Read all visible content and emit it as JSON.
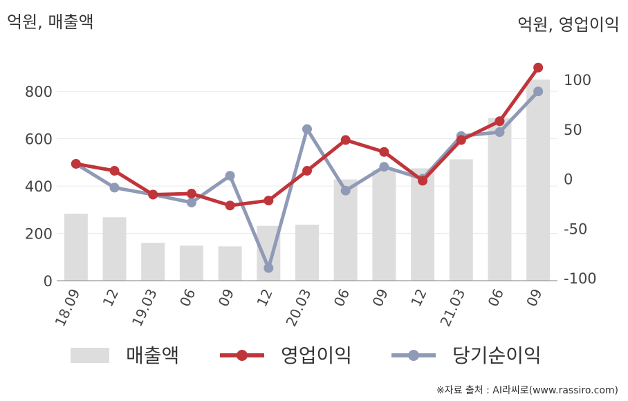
{
  "chart_data": {
    "type": "bar+line",
    "left_axis_label": "억원, 매출액",
    "right_axis_label": "억원, 영업이익",
    "categories": [
      "18.09",
      "12",
      "19.03",
      "06",
      "09",
      "12",
      "20.03",
      "06",
      "09",
      "12",
      "21.03",
      "06",
      "09"
    ],
    "left_ylim": [
      0,
      900
    ],
    "left_ticks": [
      0,
      200,
      400,
      600,
      800
    ],
    "right_ylim": [
      -100,
      120
    ],
    "right_ticks": [
      -100,
      -50,
      0,
      50,
      100
    ],
    "series": [
      {
        "name": "매출액",
        "kind": "bar",
        "axis": "left",
        "color": "#dddddd",
        "values": [
          283,
          268,
          160,
          148,
          145,
          232,
          237,
          428,
          468,
          475,
          513,
          688,
          850
        ]
      },
      {
        "name": "영업이익",
        "kind": "line",
        "axis": "right",
        "color": "#c0353a",
        "values": [
          15,
          8,
          -16,
          -15,
          -27,
          -22,
          8,
          39,
          27,
          -2,
          39,
          58,
          112
        ]
      },
      {
        "name": "당기순이익",
        "kind": "line",
        "axis": "right",
        "color": "#8f9ab6",
        "values": [
          15,
          -9,
          -16,
          -24,
          3,
          -90,
          50,
          -12,
          12,
          0,
          43,
          47,
          88
        ]
      }
    ]
  },
  "source": "※자료 출처 : AI라씨로(www.rassiro.com)"
}
